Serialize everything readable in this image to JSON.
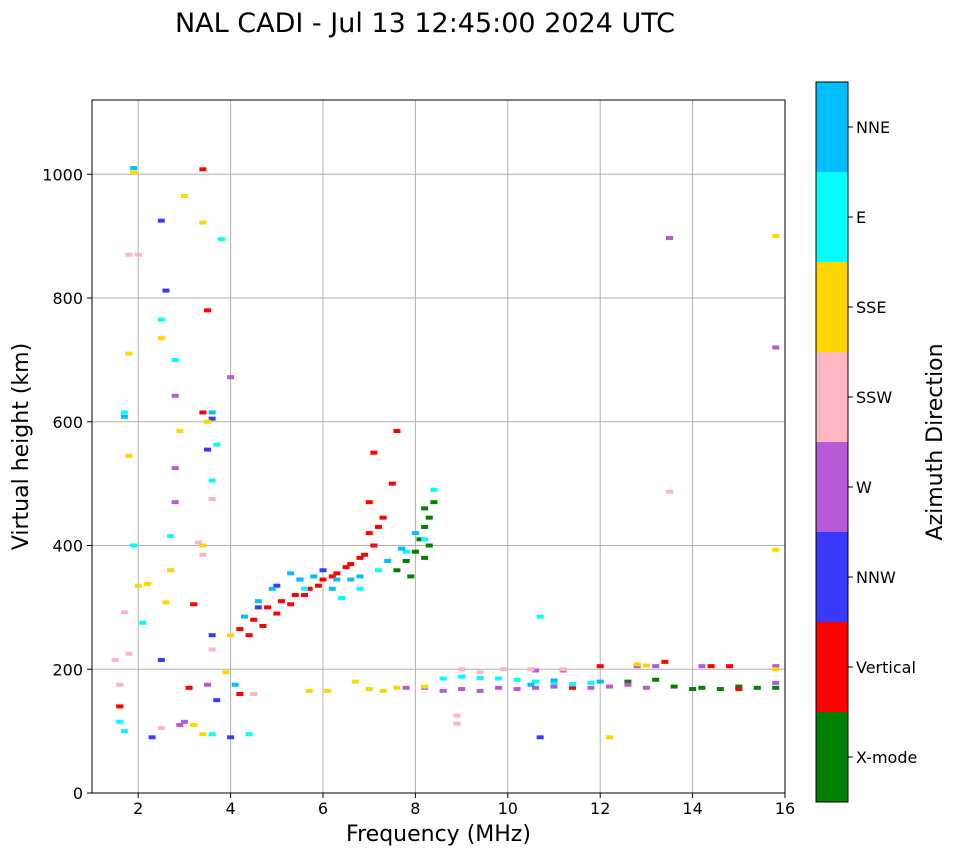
{
  "chart_data": {
    "type": "scatter",
    "title": "NAL CADI - Jul 13 12:45:00 2024 UTC",
    "xlabel": "Frequency (MHz)",
    "ylabel": "Virtual height (km)",
    "xlim": [
      1,
      16
    ],
    "ylim": [
      0,
      1120
    ],
    "xticks": [
      2,
      4,
      6,
      8,
      10,
      12,
      14,
      16
    ],
    "yticks": [
      0,
      200,
      400,
      600,
      800,
      1000
    ],
    "grid": true,
    "colorbar": {
      "title": "Azimuth Direction",
      "categories": [
        {
          "name": "X-mode",
          "color": "#008000"
        },
        {
          "name": "Vertical",
          "color": "#ff0000"
        },
        {
          "name": "NNW",
          "color": "#3a3aff"
        },
        {
          "name": "W",
          "color": "#b65ad6"
        },
        {
          "name": "SSW",
          "color": "#ffb6c1"
        },
        {
          "name": "SSE",
          "color": "#ffd700"
        },
        {
          "name": "E",
          "color": "#00ffff"
        },
        {
          "name": "NNE",
          "color": "#00bfff"
        }
      ]
    },
    "series": [
      {
        "name": "X-mode",
        "points": [
          [
            7.6,
            360
          ],
          [
            7.8,
            375
          ],
          [
            8.0,
            390
          ],
          [
            8.1,
            410
          ],
          [
            8.2,
            430
          ],
          [
            8.3,
            445
          ],
          [
            8.4,
            470
          ],
          [
            7.9,
            350
          ],
          [
            8.2,
            380
          ],
          [
            8.3,
            400
          ],
          [
            8.2,
            460
          ],
          [
            13.2,
            183
          ],
          [
            13.6,
            172
          ],
          [
            14.2,
            170
          ],
          [
            14.6,
            168
          ],
          [
            15.0,
            172
          ],
          [
            15.4,
            170
          ],
          [
            15.8,
            170
          ],
          [
            12.6,
            180
          ],
          [
            14.0,
            168
          ]
        ]
      },
      {
        "name": "Vertical",
        "points": [
          [
            4.2,
            265
          ],
          [
            4.5,
            280
          ],
          [
            4.8,
            300
          ],
          [
            5.1,
            310
          ],
          [
            5.4,
            320
          ],
          [
            5.7,
            330
          ],
          [
            6.0,
            345
          ],
          [
            6.3,
            355
          ],
          [
            6.6,
            370
          ],
          [
            6.9,
            385
          ],
          [
            7.1,
            400
          ],
          [
            7.2,
            430
          ],
          [
            7.0,
            470
          ],
          [
            7.5,
            500
          ],
          [
            7.6,
            585
          ],
          [
            7.1,
            550
          ],
          [
            4.4,
            255
          ],
          [
            4.7,
            270
          ],
          [
            5.0,
            290
          ],
          [
            5.3,
            305
          ],
          [
            5.6,
            320
          ],
          [
            5.9,
            335
          ],
          [
            6.2,
            350
          ],
          [
            6.5,
            365
          ],
          [
            6.8,
            380
          ],
          [
            7.0,
            420
          ],
          [
            7.3,
            445
          ],
          [
            3.4,
            1008
          ],
          [
            3.5,
            780
          ],
          [
            3.2,
            305
          ],
          [
            3.1,
            170
          ],
          [
            4.2,
            160
          ],
          [
            12.0,
            205
          ],
          [
            13.4,
            212
          ],
          [
            14.4,
            205
          ],
          [
            14.8,
            205
          ],
          [
            15.0,
            168
          ],
          [
            11.4,
            170
          ],
          [
            1.6,
            140
          ],
          [
            3.4,
            615
          ]
        ]
      },
      {
        "name": "NNW",
        "points": [
          [
            2.5,
            925
          ],
          [
            2.6,
            812
          ],
          [
            3.6,
            605
          ],
          [
            3.5,
            555
          ],
          [
            2.5,
            215
          ],
          [
            3.6,
            255
          ],
          [
            2.3,
            90
          ],
          [
            4.0,
            90
          ],
          [
            10.7,
            90
          ],
          [
            5.0,
            335
          ],
          [
            5.5,
            345
          ],
          [
            6.0,
            360
          ],
          [
            4.6,
            300
          ],
          [
            3.7,
            150
          ]
        ]
      },
      {
        "name": "W",
        "points": [
          [
            4.0,
            672
          ],
          [
            2.8,
            642
          ],
          [
            2.8,
            525
          ],
          [
            2.8,
            470
          ],
          [
            2.9,
            110
          ],
          [
            3.0,
            115
          ],
          [
            3.5,
            175
          ],
          [
            7.8,
            170
          ],
          [
            8.2,
            170
          ],
          [
            8.6,
            165
          ],
          [
            9.0,
            168
          ],
          [
            9.4,
            165
          ],
          [
            9.8,
            170
          ],
          [
            10.2,
            168
          ],
          [
            10.6,
            170
          ],
          [
            11.0,
            172
          ],
          [
            11.4,
            175
          ],
          [
            11.8,
            170
          ],
          [
            12.2,
            172
          ],
          [
            12.6,
            175
          ],
          [
            13.0,
            170
          ],
          [
            13.5,
            897
          ],
          [
            15.8,
            720
          ],
          [
            15.8,
            205
          ],
          [
            15.8,
            178
          ],
          [
            13.2,
            205
          ],
          [
            14.2,
            205
          ],
          [
            10.6,
            198
          ],
          [
            11.2,
            198
          ],
          [
            12.8,
            205
          ]
        ]
      },
      {
        "name": "SSW",
        "points": [
          [
            1.8,
            870
          ],
          [
            2.0,
            870
          ],
          [
            1.7,
            292
          ],
          [
            1.8,
            225
          ],
          [
            1.5,
            215
          ],
          [
            1.6,
            175
          ],
          [
            2.5,
            105
          ],
          [
            3.3,
            405
          ],
          [
            3.4,
            385
          ],
          [
            4.5,
            160
          ],
          [
            8.9,
            125
          ],
          [
            8.9,
            112
          ],
          [
            9.0,
            200
          ],
          [
            9.4,
            195
          ],
          [
            9.9,
            200
          ],
          [
            10.5,
            200
          ],
          [
            11.2,
            200
          ],
          [
            13.5,
            487
          ],
          [
            3.6,
            232
          ],
          [
            3.6,
            475
          ]
        ]
      },
      {
        "name": "SSE",
        "points": [
          [
            1.9,
            1003
          ],
          [
            3.4,
            922
          ],
          [
            3.0,
            965
          ],
          [
            1.8,
            710
          ],
          [
            2.5,
            735
          ],
          [
            2.9,
            585
          ],
          [
            3.5,
            600
          ],
          [
            1.8,
            545
          ],
          [
            3.4,
            400
          ],
          [
            2.7,
            360
          ],
          [
            2.0,
            335
          ],
          [
            2.2,
            338
          ],
          [
            2.6,
            308
          ],
          [
            3.2,
            110
          ],
          [
            3.4,
            95
          ],
          [
            3.9,
            195
          ],
          [
            5.7,
            165
          ],
          [
            6.1,
            165
          ],
          [
            6.7,
            180
          ],
          [
            7.0,
            168
          ],
          [
            7.3,
            165
          ],
          [
            7.6,
            170
          ],
          [
            8.2,
            172
          ],
          [
            12.2,
            90
          ],
          [
            12.8,
            208
          ],
          [
            13.0,
            206
          ],
          [
            15.8,
            200
          ],
          [
            15.8,
            900
          ],
          [
            15.8,
            393
          ],
          [
            4.0,
            255
          ]
        ]
      },
      {
        "name": "E",
        "points": [
          [
            3.8,
            895
          ],
          [
            2.5,
            765
          ],
          [
            2.8,
            700
          ],
          [
            3.7,
            563
          ],
          [
            3.6,
            505
          ],
          [
            2.1,
            275
          ],
          [
            2.7,
            415
          ],
          [
            1.6,
            115
          ],
          [
            1.7,
            100
          ],
          [
            4.4,
            95
          ],
          [
            1.7,
            615
          ],
          [
            8.6,
            185
          ],
          [
            9.0,
            188
          ],
          [
            9.4,
            186
          ],
          [
            9.8,
            185
          ],
          [
            10.2,
            183
          ],
          [
            10.6,
            180
          ],
          [
            11.0,
            178
          ],
          [
            11.4,
            176
          ],
          [
            11.8,
            178
          ],
          [
            7.2,
            360
          ],
          [
            7.8,
            390
          ],
          [
            8.2,
            410
          ],
          [
            6.4,
            315
          ],
          [
            6.8,
            330
          ],
          [
            10.7,
            285
          ],
          [
            3.6,
            95
          ],
          [
            1.9,
            400
          ],
          [
            8.4,
            490
          ],
          [
            5.6,
            330
          ]
        ]
      },
      {
        "name": "NNE",
        "points": [
          [
            1.9,
            1010
          ],
          [
            3.6,
            615
          ],
          [
            4.3,
            285
          ],
          [
            4.9,
            330
          ],
          [
            5.3,
            355
          ],
          [
            5.8,
            350
          ],
          [
            6.3,
            345
          ],
          [
            6.8,
            350
          ],
          [
            7.4,
            375
          ],
          [
            7.7,
            395
          ],
          [
            8.0,
            420
          ],
          [
            5.5,
            345
          ],
          [
            6.2,
            330
          ],
          [
            6.6,
            345
          ],
          [
            4.6,
            310
          ],
          [
            1.7,
            608
          ],
          [
            4.1,
            175
          ],
          [
            10.5,
            175
          ],
          [
            11.0,
            182
          ],
          [
            12.0,
            180
          ]
        ]
      }
    ]
  }
}
